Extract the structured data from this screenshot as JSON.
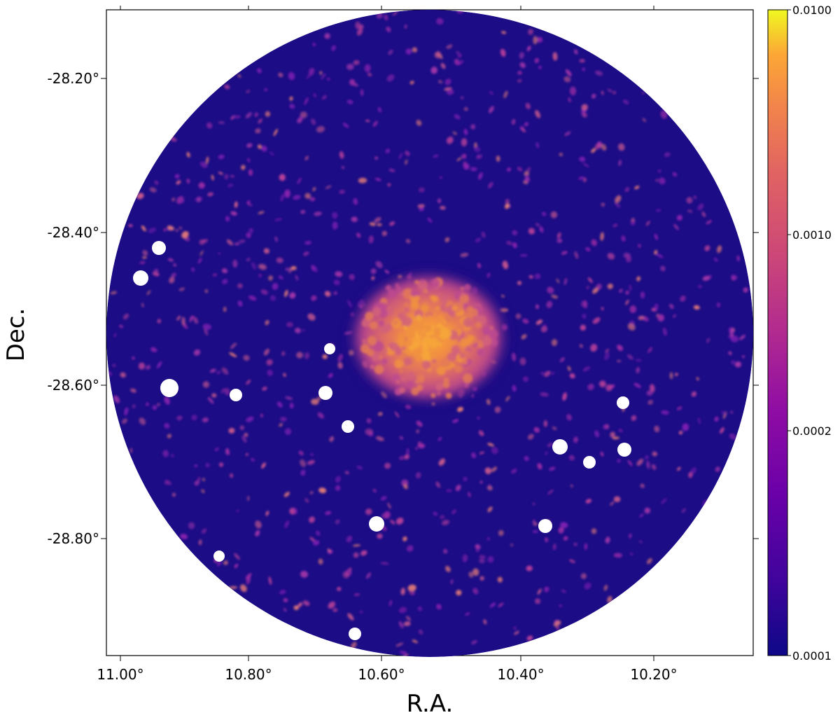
{
  "figure": {
    "xlabel": "R.A.",
    "ylabel": "Dec.",
    "x_ticks": [
      "11.00°",
      "10.80°",
      "10.60°",
      "10.40°",
      "10.20°"
    ],
    "y_ticks": [
      "-28.20°",
      "-28.40°",
      "-28.60°",
      "-28.80°"
    ],
    "colorbar": {
      "scale": "log",
      "colormap": "plasma",
      "range": [
        0.0001,
        0.01
      ],
      "tick_labels": [
        "0.0100",
        "0.0010",
        "0.0002",
        "0.0001"
      ]
    },
    "colors": {
      "background": "#1c0c86",
      "diffuse_core": "#f6a93c",
      "masked_source": "#ffffff"
    }
  }
}
